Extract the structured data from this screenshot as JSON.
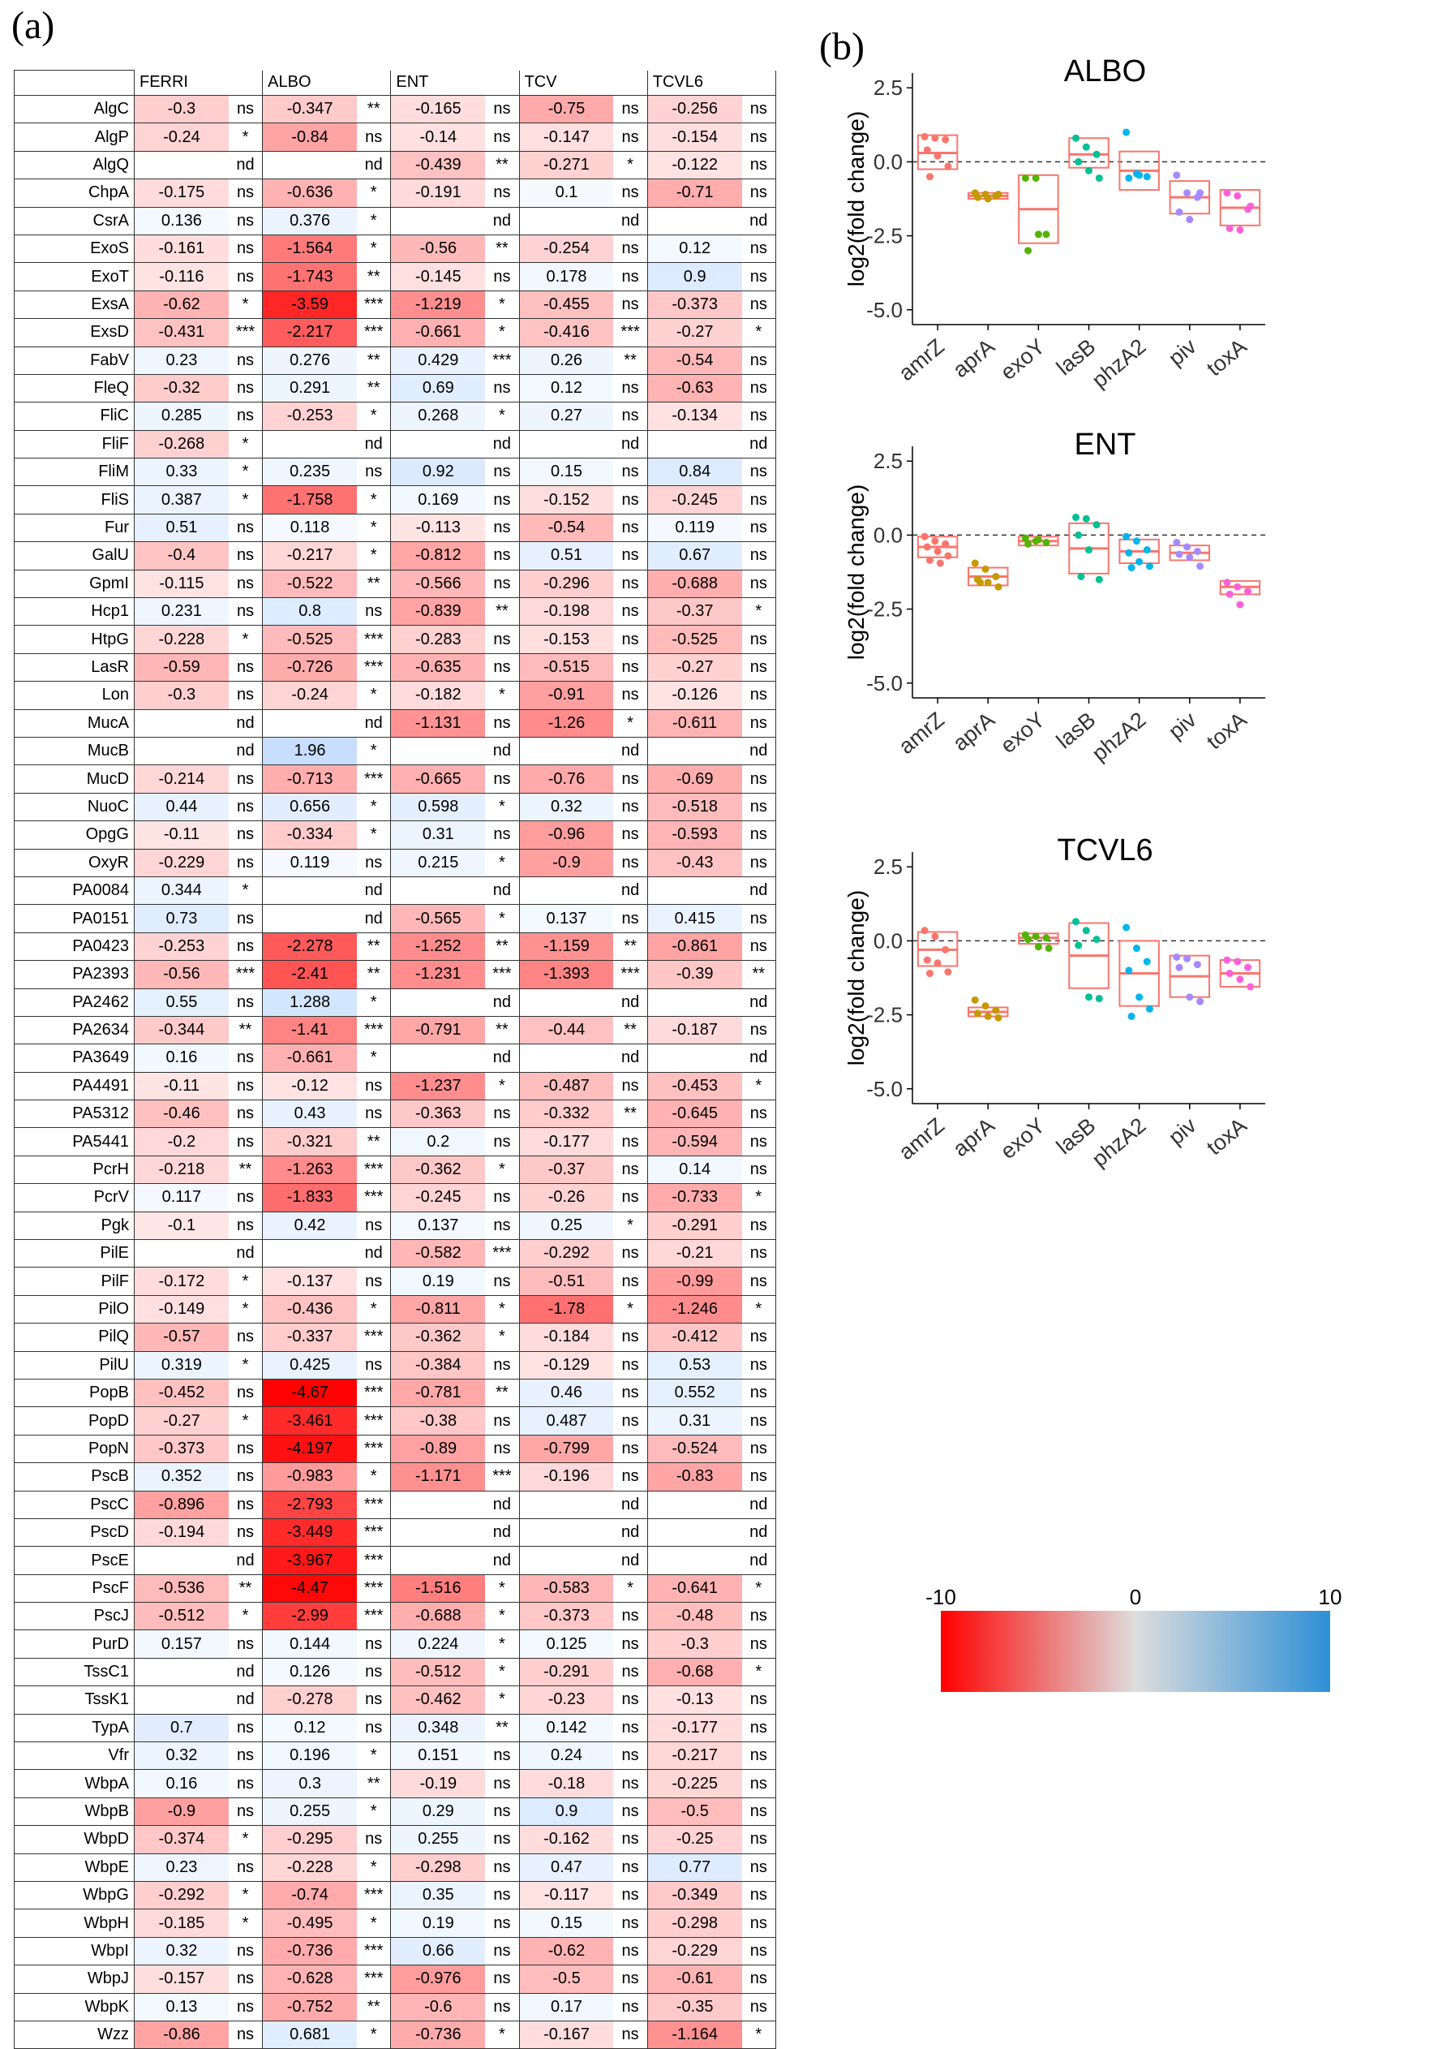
{
  "figure": {
    "label_a": "(a)",
    "label_b": "(b)"
  },
  "heatmap": {
    "columns": [
      "FERRI",
      "ALBO",
      "ENT",
      "TCV",
      "TCVL6"
    ],
    "rows": [
      [
        "AlgC",
        "-0.3",
        "ns",
        "-0.347",
        "**",
        "-0.165",
        "ns",
        "-0.75",
        "ns",
        "-0.256",
        "ns"
      ],
      [
        "AlgP",
        "-0.24",
        "*",
        "-0.84",
        "ns",
        "-0.14",
        "ns",
        "-0.147",
        "ns",
        "-0.154",
        "ns"
      ],
      [
        "AlgQ",
        "",
        "nd",
        "",
        "nd",
        "-0.439",
        "**",
        "-0.271",
        "*",
        "-0.122",
        "ns"
      ],
      [
        "ChpA",
        "-0.175",
        "ns",
        "-0.636",
        "*",
        "-0.191",
        "ns",
        "0.1",
        "ns",
        "-0.71",
        "ns"
      ],
      [
        "CsrA",
        "0.136",
        "ns",
        "0.376",
        "*",
        "",
        "nd",
        "",
        "nd",
        "",
        "nd"
      ],
      [
        "ExoS",
        "-0.161",
        "ns",
        "-1.564",
        "*",
        "-0.56",
        "**",
        "-0.254",
        "ns",
        "0.12",
        "ns"
      ],
      [
        "ExoT",
        "-0.116",
        "ns",
        "-1.743",
        "**",
        "-0.145",
        "ns",
        "0.178",
        "ns",
        "0.9",
        "ns"
      ],
      [
        "ExsA",
        "-0.62",
        "*",
        "-3.59",
        "***",
        "-1.219",
        "*",
        "-0.455",
        "ns",
        "-0.373",
        "ns"
      ],
      [
        "ExsD",
        "-0.431",
        "***",
        "-2.217",
        "***",
        "-0.661",
        "*",
        "-0.416",
        "***",
        "-0.27",
        "*"
      ],
      [
        "FabV",
        "0.23",
        "ns",
        "0.276",
        "**",
        "0.429",
        "***",
        "0.26",
        "**",
        "-0.54",
        "ns"
      ],
      [
        "FleQ",
        "-0.32",
        "ns",
        "0.291",
        "**",
        "0.69",
        "ns",
        "0.12",
        "ns",
        "-0.63",
        "ns"
      ],
      [
        "FliC",
        "0.285",
        "ns",
        "-0.253",
        "*",
        "0.268",
        "*",
        "0.27",
        "ns",
        "-0.134",
        "ns"
      ],
      [
        "FliF",
        "-0.268",
        "*",
        "",
        "nd",
        "",
        "nd",
        "",
        "nd",
        "",
        "nd"
      ],
      [
        "FliM",
        "0.33",
        "*",
        "0.235",
        "ns",
        "0.92",
        "ns",
        "0.15",
        "ns",
        "0.84",
        "ns"
      ],
      [
        "FliS",
        "0.387",
        "*",
        "-1.758",
        "*",
        "0.169",
        "ns",
        "-0.152",
        "ns",
        "-0.245",
        "ns"
      ],
      [
        "Fur",
        "0.51",
        "ns",
        "0.118",
        "*",
        "-0.113",
        "ns",
        "-0.54",
        "ns",
        "0.119",
        "ns"
      ],
      [
        "GalU",
        "-0.4",
        "ns",
        "-0.217",
        "*",
        "-0.812",
        "ns",
        "0.51",
        "ns",
        "0.67",
        "ns"
      ],
      [
        "GpmI",
        "-0.115",
        "ns",
        "-0.522",
        "**",
        "-0.566",
        "ns",
        "-0.296",
        "ns",
        "-0.688",
        "ns"
      ],
      [
        "Hcp1",
        "0.231",
        "ns",
        "0.8",
        "ns",
        "-0.839",
        "**",
        "-0.198",
        "ns",
        "-0.37",
        "*"
      ],
      [
        "HtpG",
        "-0.228",
        "*",
        "-0.525",
        "***",
        "-0.283",
        "ns",
        "-0.153",
        "ns",
        "-0.525",
        "ns"
      ],
      [
        "LasR",
        "-0.59",
        "ns",
        "-0.726",
        "***",
        "-0.635",
        "ns",
        "-0.515",
        "ns",
        "-0.27",
        "ns"
      ],
      [
        "Lon",
        "-0.3",
        "ns",
        "-0.24",
        "*",
        "-0.182",
        "*",
        "-0.91",
        "ns",
        "-0.126",
        "ns"
      ],
      [
        "MucA",
        "",
        "nd",
        "",
        "nd",
        "-1.131",
        "ns",
        "-1.26",
        "*",
        "-0.611",
        "ns"
      ],
      [
        "MucB",
        "",
        "nd",
        "1.96",
        "*",
        "",
        "nd",
        "",
        "nd",
        "",
        "nd"
      ],
      [
        "MucD",
        "-0.214",
        "ns",
        "-0.713",
        "***",
        "-0.665",
        "ns",
        "-0.76",
        "ns",
        "-0.69",
        "ns"
      ],
      [
        "NuoC",
        "0.44",
        "ns",
        "0.656",
        "*",
        "0.598",
        "*",
        "0.32",
        "ns",
        "-0.518",
        "ns"
      ],
      [
        "OpgG",
        "-0.11",
        "ns",
        "-0.334",
        "*",
        "0.31",
        "ns",
        "-0.96",
        "ns",
        "-0.593",
        "ns"
      ],
      [
        "OxyR",
        "-0.229",
        "ns",
        "0.119",
        "ns",
        "0.215",
        "*",
        "-0.9",
        "ns",
        "-0.43",
        "ns"
      ],
      [
        "PA0084",
        "0.344",
        "*",
        "",
        "nd",
        "",
        "nd",
        "",
        "nd",
        "",
        "nd"
      ],
      [
        "PA0151",
        "0.73",
        "ns",
        "",
        "nd",
        "-0.565",
        "*",
        "0.137",
        "ns",
        "0.415",
        "ns"
      ],
      [
        "PA0423",
        "-0.253",
        "ns",
        "-2.278",
        "**",
        "-1.252",
        "**",
        "-1.159",
        "**",
        "-0.861",
        "ns"
      ],
      [
        "PA2393",
        "-0.56",
        "***",
        "-2.41",
        "**",
        "-1.231",
        "***",
        "-1.393",
        "***",
        "-0.39",
        "**"
      ],
      [
        "PA2462",
        "0.55",
        "ns",
        "1.288",
        "*",
        "",
        "nd",
        "",
        "nd",
        "",
        "nd"
      ],
      [
        "PA2634",
        "-0.344",
        "**",
        "-1.41",
        "***",
        "-0.791",
        "**",
        "-0.44",
        "**",
        "-0.187",
        "ns"
      ],
      [
        "PA3649",
        "0.16",
        "ns",
        "-0.661",
        "*",
        "",
        "nd",
        "",
        "nd",
        "",
        "nd"
      ],
      [
        "PA4491",
        "-0.11",
        "ns",
        "-0.12",
        "ns",
        "-1.237",
        "*",
        "-0.487",
        "ns",
        "-0.453",
        "*"
      ],
      [
        "PA5312",
        "-0.46",
        "ns",
        "0.43",
        "ns",
        "-0.363",
        "ns",
        "-0.332",
        "**",
        "-0.645",
        "ns"
      ],
      [
        "PA5441",
        "-0.2",
        "ns",
        "-0.321",
        "**",
        "0.2",
        "ns",
        "-0.177",
        "ns",
        "-0.594",
        "ns"
      ],
      [
        "PcrH",
        "-0.218",
        "**",
        "-1.263",
        "***",
        "-0.362",
        "*",
        "-0.37",
        "ns",
        "0.14",
        "ns"
      ],
      [
        "PcrV",
        "0.117",
        "ns",
        "-1.833",
        "***",
        "-0.245",
        "ns",
        "-0.26",
        "ns",
        "-0.733",
        "*"
      ],
      [
        "Pgk",
        "-0.1",
        "ns",
        "0.42",
        "ns",
        "0.137",
        "ns",
        "0.25",
        "*",
        "-0.291",
        "ns"
      ],
      [
        "PilE",
        "",
        "nd",
        "",
        "nd",
        "-0.582",
        "***",
        "-0.292",
        "ns",
        "-0.21",
        "ns"
      ],
      [
        "PilF",
        "-0.172",
        "*",
        "-0.137",
        "ns",
        "0.19",
        "ns",
        "-0.51",
        "ns",
        "-0.99",
        "ns"
      ],
      [
        "PilO",
        "-0.149",
        "*",
        "-0.436",
        "*",
        "-0.811",
        "*",
        "-1.78",
        "*",
        "-1.246",
        "*"
      ],
      [
        "PilQ",
        "-0.57",
        "ns",
        "-0.337",
        "***",
        "-0.362",
        "*",
        "-0.184",
        "ns",
        "-0.412",
        "ns"
      ],
      [
        "PilU",
        "0.319",
        "*",
        "0.425",
        "ns",
        "-0.384",
        "ns",
        "-0.129",
        "ns",
        "0.53",
        "ns"
      ],
      [
        "PopB",
        "-0.452",
        "ns",
        "-4.67",
        "***",
        "-0.781",
        "**",
        "0.46",
        "ns",
        "0.552",
        "ns"
      ],
      [
        "PopD",
        "-0.27",
        "*",
        "-3.461",
        "***",
        "-0.38",
        "ns",
        "0.487",
        "ns",
        "0.31",
        "ns"
      ],
      [
        "PopN",
        "-0.373",
        "ns",
        "-4.197",
        "***",
        "-0.89",
        "ns",
        "-0.799",
        "ns",
        "-0.524",
        "ns"
      ],
      [
        "PscB",
        "0.352",
        "ns",
        "-0.983",
        "*",
        "-1.171",
        "***",
        "-0.196",
        "ns",
        "-0.83",
        "ns"
      ],
      [
        "PscC",
        "-0.896",
        "ns",
        "-2.793",
        "***",
        "",
        "nd",
        "",
        "nd",
        "",
        "nd"
      ],
      [
        "PscD",
        "-0.194",
        "ns",
        "-3.449",
        "***",
        "",
        "nd",
        "",
        "nd",
        "",
        "nd"
      ],
      [
        "PscE",
        "",
        "nd",
        "-3.967",
        "***",
        "",
        "nd",
        "",
        "nd",
        "",
        "nd"
      ],
      [
        "PscF",
        "-0.536",
        "**",
        "-4.47",
        "***",
        "-1.516",
        "*",
        "-0.583",
        "*",
        "-0.641",
        "*"
      ],
      [
        "PscJ",
        "-0.512",
        "*",
        "-2.99",
        "***",
        "-0.688",
        "*",
        "-0.373",
        "ns",
        "-0.48",
        "ns"
      ],
      [
        "PurD",
        "0.157",
        "ns",
        "0.144",
        "ns",
        "0.224",
        "*",
        "0.125",
        "ns",
        "-0.3",
        "ns"
      ],
      [
        "TssC1",
        "",
        "nd",
        "0.126",
        "ns",
        "-0.512",
        "*",
        "-0.291",
        "ns",
        "-0.68",
        "*"
      ],
      [
        "TssK1",
        "",
        "nd",
        "-0.278",
        "ns",
        "-0.462",
        "*",
        "-0.23",
        "ns",
        "-0.13",
        "ns"
      ],
      [
        "TypA",
        "0.7",
        "ns",
        "0.12",
        "ns",
        "0.348",
        "**",
        "0.142",
        "ns",
        "-0.177",
        "ns"
      ],
      [
        "Vfr",
        "0.32",
        "ns",
        "0.196",
        "*",
        "0.151",
        "ns",
        "0.24",
        "ns",
        "-0.217",
        "ns"
      ],
      [
        "WbpA",
        "0.16",
        "ns",
        "0.3",
        "**",
        "-0.19",
        "ns",
        "-0.18",
        "ns",
        "-0.225",
        "ns"
      ],
      [
        "WbpB",
        "-0.9",
        "ns",
        "0.255",
        "*",
        "0.29",
        "ns",
        "0.9",
        "ns",
        "-0.5",
        "ns"
      ],
      [
        "WbpD",
        "-0.374",
        "*",
        "-0.295",
        "ns",
        "0.255",
        "ns",
        "-0.162",
        "ns",
        "-0.25",
        "ns"
      ],
      [
        "WbpE",
        "0.23",
        "ns",
        "-0.228",
        "*",
        "-0.298",
        "ns",
        "0.47",
        "ns",
        "0.77",
        "ns"
      ],
      [
        "WbpG",
        "-0.292",
        "*",
        "-0.74",
        "***",
        "0.35",
        "ns",
        "-0.117",
        "ns",
        "-0.349",
        "ns"
      ],
      [
        "WbpH",
        "-0.185",
        "*",
        "-0.495",
        "*",
        "0.19",
        "ns",
        "0.15",
        "ns",
        "-0.298",
        "ns"
      ],
      [
        "WbpI",
        "0.32",
        "ns",
        "-0.736",
        "***",
        "0.66",
        "ns",
        "-0.62",
        "ns",
        "-0.229",
        "ns"
      ],
      [
        "WbpJ",
        "-0.157",
        "ns",
        "-0.628",
        "***",
        "-0.976",
        "ns",
        "-0.5",
        "ns",
        "-0.61",
        "ns"
      ],
      [
        "WbpK",
        "0.13",
        "ns",
        "-0.752",
        "**",
        "-0.6",
        "ns",
        "0.17",
        "ns",
        "-0.35",
        "ns"
      ],
      [
        "Wzz",
        "-0.86",
        "ns",
        "0.681",
        "*",
        "-0.736",
        "*",
        "-0.167",
        "ns",
        "-1.164",
        "*"
      ]
    ]
  },
  "chart_data": [
    {
      "type": "scatter+box",
      "title": "ALBO",
      "ylabel": "log2(fold change)",
      "ylim": [
        -5.5,
        3
      ],
      "yticks": [
        "2.5",
        "0.0",
        "-2.5",
        "-5.0"
      ],
      "categories": [
        "amrZ",
        "aprA",
        "exoY",
        "lasB",
        "phzA2",
        "piv",
        "toxA"
      ],
      "colors": [
        "#F8766D",
        "#C49A00",
        "#53B400",
        "#00C094",
        "#00B6EB",
        "#A58AFF",
        "#FB61D7"
      ],
      "boxes": [
        [
          -0.25,
          0.3,
          0.9
        ],
        [
          -1.25,
          -1.15,
          -1.05
        ],
        [
          -2.75,
          -1.6,
          -0.45
        ],
        [
          -0.2,
          0.25,
          0.8
        ],
        [
          -0.95,
          -0.3,
          0.35
        ],
        [
          -1.75,
          -1.2,
          -0.65
        ],
        [
          -2.15,
          -1.55,
          -0.95
        ]
      ],
      "points": [
        [
          0.85,
          0.8,
          0.75,
          0.4,
          0.2,
          -0.15,
          -0.5
        ],
        [
          -1.05,
          -1.1,
          -1.15,
          -1.2,
          -1.25,
          -1.1
        ],
        [
          -0.55,
          -0.55,
          -2.45,
          -3.0,
          -2.45
        ],
        [
          0.8,
          0.5,
          0.25,
          0.0,
          -0.3,
          -0.55
        ],
        [
          1.0,
          -0.4,
          -0.5,
          -0.55,
          -0.45
        ],
        [
          -0.45,
          -1.05,
          -1.2,
          -1.7,
          -1.95,
          -1.05
        ],
        [
          -1.05,
          -1.15,
          -1.6,
          -2.25,
          -2.3,
          -1.5
        ]
      ]
    },
    {
      "type": "scatter+box",
      "title": "ENT",
      "ylabel": "log2(fold change)",
      "ylim": [
        -5.5,
        3
      ],
      "yticks": [
        "2.5",
        "0.0",
        "-2.5",
        "-5.0"
      ],
      "categories": [
        "amrZ",
        "aprA",
        "exoY",
        "lasB",
        "phzA2",
        "piv",
        "toxA"
      ],
      "colors": [
        "#F8766D",
        "#C49A00",
        "#53B400",
        "#00C094",
        "#00B6EB",
        "#A58AFF",
        "#FB61D7"
      ],
      "boxes": [
        [
          -0.75,
          -0.4,
          -0.05
        ],
        [
          -1.7,
          -1.4,
          -1.1
        ],
        [
          -0.35,
          -0.2,
          -0.05
        ],
        [
          -1.3,
          -0.45,
          0.4
        ],
        [
          -0.95,
          -0.55,
          -0.15
        ],
        [
          -0.85,
          -0.6,
          -0.35
        ],
        [
          -2.0,
          -1.75,
          -1.55
        ]
      ],
      "points": [
        [
          -0.05,
          -0.2,
          -0.3,
          -0.4,
          -0.55,
          -0.7,
          -0.85,
          -0.95
        ],
        [
          -0.95,
          -1.15,
          -1.4,
          -1.5,
          -1.6,
          -1.75,
          -1.6
        ],
        [
          -0.1,
          -0.2,
          -0.25,
          -0.3,
          -0.15
        ],
        [
          0.6,
          0.55,
          0.35,
          0.0,
          -0.5,
          -1.5,
          -1.4
        ],
        [
          -0.05,
          -0.2,
          -0.5,
          -0.6,
          -0.9,
          -1.05,
          -1.1
        ],
        [
          -0.25,
          -0.4,
          -0.55,
          -0.65,
          -0.75,
          -1.05
        ],
        [
          -1.6,
          -1.75,
          -1.9,
          -2.0,
          -2.35
        ]
      ]
    },
    {
      "type": "scatter+box",
      "title": "TCVL6",
      "ylabel": "log2(fold change)",
      "ylim": [
        -5.5,
        3
      ],
      "yticks": [
        "2.5",
        "0.0",
        "-2.5",
        "-5.0"
      ],
      "categories": [
        "amrZ",
        "aprA",
        "exoY",
        "lasB",
        "phzA2",
        "piv",
        "toxA"
      ],
      "colors": [
        "#F8766D",
        "#C49A00",
        "#53B400",
        "#00C094",
        "#00B6EB",
        "#A58AFF",
        "#FB61D7"
      ],
      "boxes": [
        [
          -0.85,
          -0.3,
          0.3
        ],
        [
          -2.55,
          -2.4,
          -2.25
        ],
        [
          -0.1,
          0.1,
          0.25
        ],
        [
          -1.6,
          -0.5,
          0.6
        ],
        [
          -2.2,
          -1.1,
          0.0
        ],
        [
          -1.9,
          -1.2,
          -0.5
        ],
        [
          -1.55,
          -1.1,
          -0.65
        ]
      ],
      "points": [
        [
          0.35,
          0.15,
          -0.3,
          -0.65,
          -0.75,
          -1.05,
          -1.1
        ],
        [
          -2.0,
          -2.2,
          -2.35,
          -2.45,
          -2.55,
          -2.6
        ],
        [
          0.2,
          0.15,
          0.1,
          0.05,
          -0.2,
          -0.25
        ],
        [
          0.65,
          0.35,
          0.05,
          -0.15,
          -1.9,
          -1.95
        ],
        [
          0.45,
          -0.25,
          -0.7,
          -1.0,
          -1.9,
          -2.3,
          -2.55
        ],
        [
          -0.55,
          -0.6,
          -0.8,
          -0.9,
          -1.9,
          -2.05
        ],
        [
          -0.65,
          -0.7,
          -0.9,
          -1.1,
          -1.3,
          -1.55
        ]
      ]
    }
  ],
  "colorbar": {
    "min_label": "-10",
    "mid_label": "0",
    "max_label": "10",
    "low_color": "#FF0000",
    "mid_color": "#DDDDDD",
    "high_color": "#2E8FD6"
  }
}
